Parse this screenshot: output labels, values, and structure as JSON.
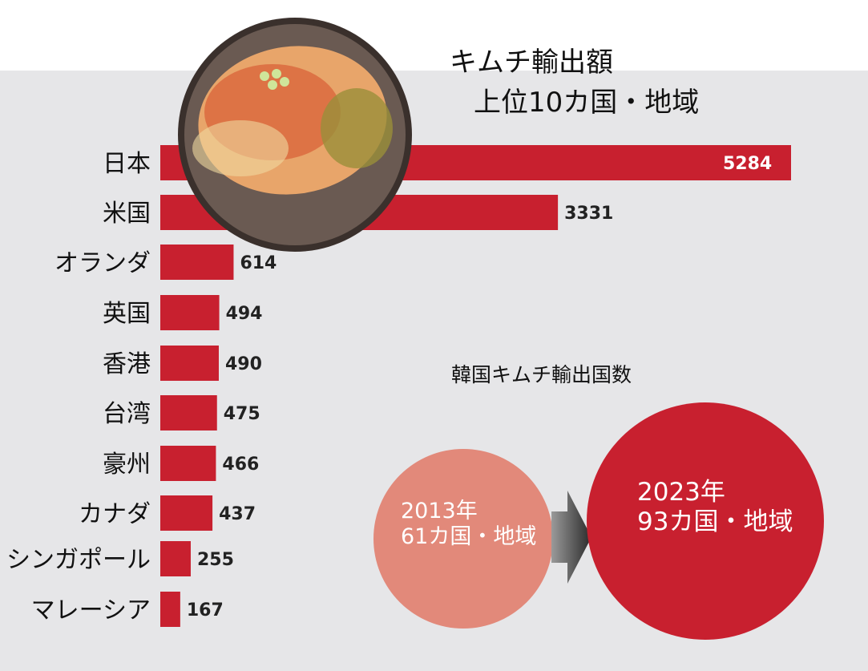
{
  "chart_data": {
    "type": "bar",
    "orientation": "horizontal",
    "title_line1": "キムチ輸出額",
    "title_line2": "上位10カ国・地域",
    "categories": [
      "日本",
      "米国",
      "オランダ",
      "英国",
      "香港",
      "台湾",
      "豪州",
      "カナダ",
      "シンガポール",
      "マレーシア"
    ],
    "values": [
      5284,
      3331,
      614,
      494,
      490,
      475,
      466,
      437,
      255,
      167
    ],
    "bar_color": "#c8202f",
    "grid": false
  },
  "count_panel": {
    "title": "韓国キムチ輸出国数",
    "before": {
      "year": "2013年",
      "count": "61カ国・地域",
      "color": "#e2897a"
    },
    "after": {
      "year": "2023年",
      "count": "93カ国・地域",
      "color": "#c8202f"
    }
  },
  "image": "kimchi-plate"
}
